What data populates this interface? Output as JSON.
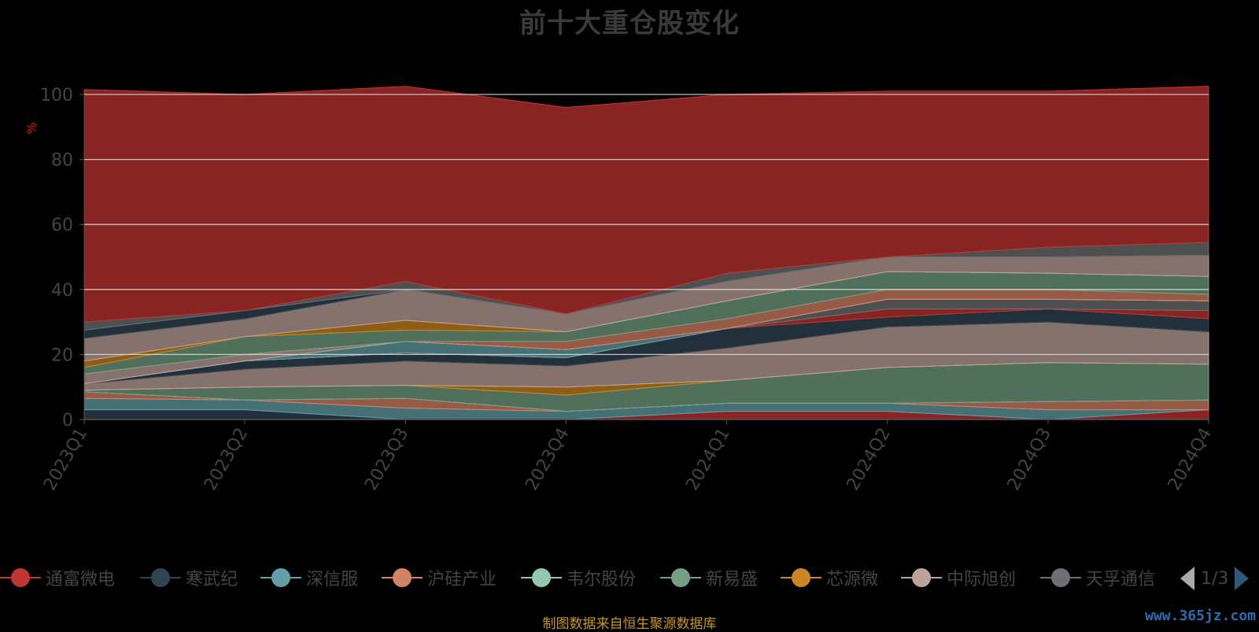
{
  "title": "前十大重仓股变化",
  "source_note": "制图数据来自恒生聚源数据库",
  "watermark": "www.365jz.com",
  "legend_pager": "1/3",
  "chart_data": {
    "type": "area",
    "stacked": true,
    "title": "前十大重仓股变化",
    "xlabel": "",
    "ylabel": "%",
    "ylim": [
      0,
      100
    ],
    "yticks": [
      0,
      20,
      40,
      60,
      80,
      100
    ],
    "grid": true,
    "legend_position": "bottom",
    "categories": [
      "2023Q1",
      "2023Q2",
      "2023Q3",
      "2023Q4",
      "2024Q1",
      "2024Q2",
      "2024Q3",
      "2024Q4"
    ],
    "series": [
      {
        "name": "通富微电",
        "color": "#c23531",
        "values": [
          0,
          0,
          0,
          0,
          2.5,
          2.5,
          0,
          3.0
        ]
      },
      {
        "name": "寒武纪",
        "color": "#2f4554",
        "values": [
          3.0,
          3.0,
          0,
          0,
          0,
          0,
          0,
          0
        ]
      },
      {
        "name": "深信服",
        "color": "#61a0a8",
        "values": [
          3.5,
          3.0,
          3.5,
          2.5,
          2.5,
          2.5,
          3.0,
          0
        ]
      },
      {
        "name": "沪硅产业",
        "color": "#d48265",
        "values": [
          2.0,
          0,
          3.0,
          0,
          0,
          0,
          2.5,
          3.0
        ]
      },
      {
        "name": "韦尔股份",
        "color": "#91c7ae",
        "values": [
          0,
          0,
          0,
          0,
          0,
          0,
          0,
          0
        ]
      },
      {
        "name": "新易盛",
        "color": "#749f83",
        "values": [
          0.5,
          4.0,
          4.0,
          5.0,
          7.0,
          11.0,
          12.0,
          11.0
        ]
      },
      {
        "name": "芯源微",
        "color": "#ca8622",
        "values": [
          0,
          0,
          0,
          2.5,
          0,
          0,
          0,
          0
        ]
      },
      {
        "name": "中际旭创",
        "color": "#bda29a",
        "values": [
          2.0,
          5.5,
          7.5,
          6.5,
          10.0,
          12.5,
          12.5,
          10.0
        ]
      },
      {
        "name": "天孚通信",
        "color": "#6e7074",
        "values": [
          0,
          0,
          0,
          0,
          0,
          0,
          0,
          0
        ]
      },
      {
        "name": "寒武纪",
        "color": "#2f4554",
        "values": [
          0,
          2.5,
          2.5,
          2.5,
          6.0,
          3.0,
          4.0,
          4.0
        ]
      },
      {
        "name": "通富微电",
        "color": "#c23531",
        "values": [
          0,
          0,
          0,
          0,
          0,
          2.5,
          0,
          2.5
        ]
      },
      {
        "name": "天孚通信",
        "color": "#6e7074",
        "values": [
          0,
          0,
          0,
          0,
          0,
          3.0,
          3.0,
          3.0
        ]
      },
      {
        "name": "沪硅产业",
        "color": "#d48265",
        "values": [
          0,
          0,
          0,
          0,
          0,
          0,
          0,
          0
        ]
      },
      {
        "name": "深信服",
        "color": "#61a0a8",
        "values": [
          0,
          0,
          3.5,
          2.5,
          0,
          0,
          0,
          0
        ]
      },
      {
        "name": "中际旭创",
        "color": "#bda29a",
        "values": [
          3.0,
          2.0,
          0,
          0,
          0,
          0,
          0,
          0
        ]
      },
      {
        "name": "沪硅产业",
        "color": "#d48265",
        "values": [
          0,
          0,
          0,
          2.5,
          3.0,
          3.0,
          3.0,
          2.0
        ]
      },
      {
        "name": "新易盛",
        "color": "#749f83",
        "values": [
          2.0,
          5.5,
          3.5,
          3.0,
          5.5,
          5.5,
          5.0,
          5.5
        ]
      },
      {
        "name": "芯源微",
        "color": "#ca8622",
        "values": [
          2.0,
          0,
          3.0,
          0,
          0,
          0,
          0,
          0
        ]
      },
      {
        "name": "中际旭创",
        "color": "#bda29a",
        "values": [
          7.0,
          5.5,
          9.5,
          5.5,
          6.0,
          4.5,
          5.0,
          6.5
        ]
      },
      {
        "name": "寒武纪",
        "color": "#2f4554",
        "values": [
          2.5,
          2.5,
          0,
          0,
          0,
          0,
          0,
          0
        ]
      },
      {
        "name": "天孚通信",
        "color": "#6e7074",
        "values": [
          2.5,
          0,
          2.5,
          0,
          2.5,
          0,
          3.0,
          4.0
        ]
      },
      {
        "name": "通富微电",
        "color": "#c23531",
        "values": [
          71.5,
          66.5,
          60.0,
          63.5,
          55.0,
          51.0,
          48.0,
          48.0
        ]
      }
    ]
  }
}
